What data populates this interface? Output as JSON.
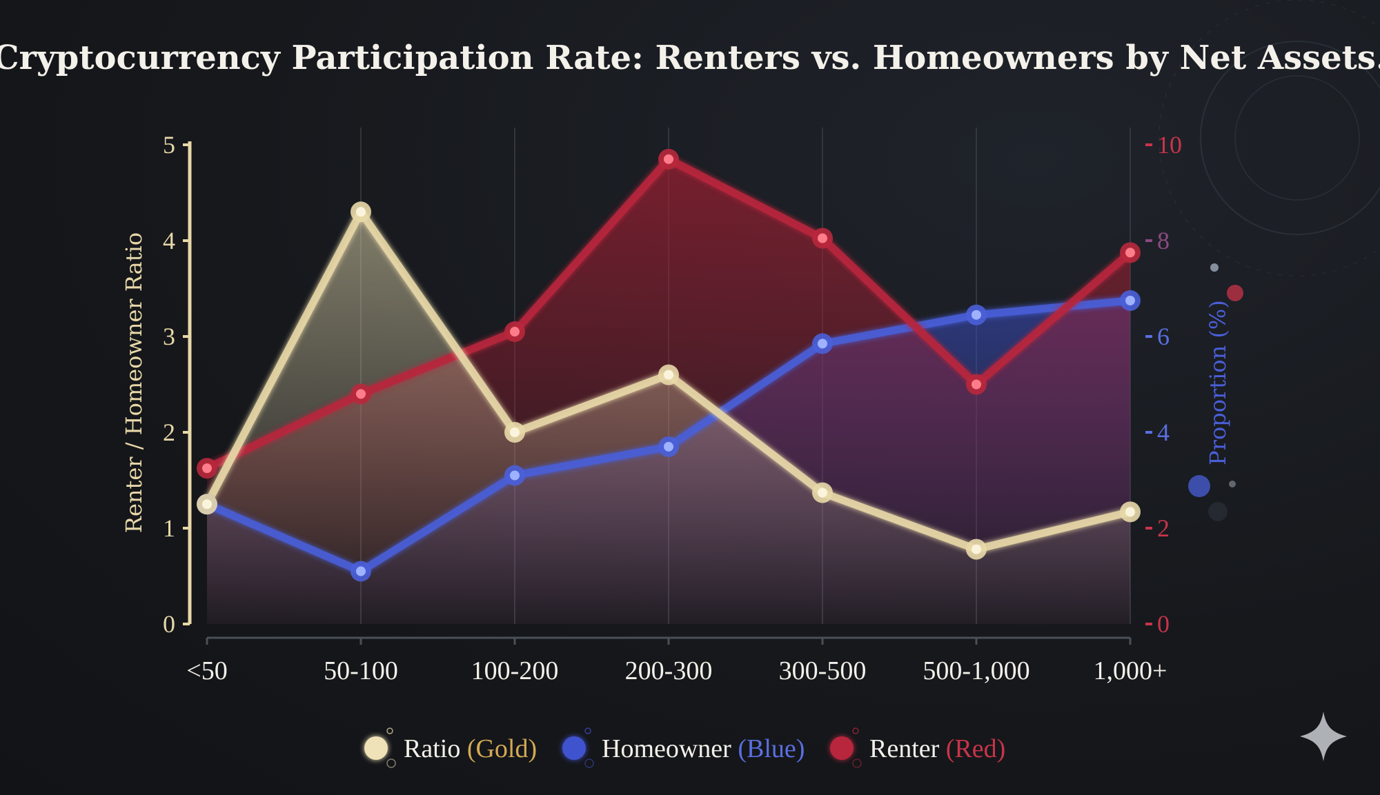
{
  "chart_data": {
    "type": "line",
    "title": "Cryptocurrency Participation Rate: Renters vs. Homeowners by Net Assets.",
    "categories": [
      "<50",
      "50-100",
      "100-200",
      "200-300",
      "300-500",
      "500-1,000",
      "1,000+"
    ],
    "left_axis": {
      "label": "Renter / Homeowner Ratio",
      "range": [
        0,
        5
      ],
      "ticks": [
        "0",
        "1",
        "2",
        "3",
        "4",
        "5"
      ]
    },
    "right_axis": {
      "label": "Proportion (%)",
      "range": [
        0,
        10
      ],
      "ticks": [
        "0",
        "2",
        "4",
        "6",
        "8",
        "10"
      ]
    },
    "series": [
      {
        "key": "ratio",
        "name": "Ratio",
        "axis": "left",
        "color": "#e8d8a8",
        "values": [
          1.25,
          4.3,
          2.0,
          2.6,
          1.37,
          0.78,
          1.17
        ]
      },
      {
        "key": "homeowner",
        "name": "Homeowner",
        "axis": "right",
        "color": "#4a5fd8",
        "values": [
          2.5,
          1.1,
          3.1,
          3.7,
          5.85,
          6.45,
          6.75
        ]
      },
      {
        "key": "renter",
        "name": "Renter",
        "axis": "right",
        "color": "#b8283c",
        "values": [
          3.25,
          4.8,
          6.1,
          9.7,
          8.05,
          5.0,
          7.75
        ]
      }
    ],
    "legend": {
      "placement": "bottom-center",
      "items": [
        {
          "series": "ratio",
          "name": "Ratio",
          "tag": "(Gold)",
          "tag_color": "#d4aa55"
        },
        {
          "series": "homeowner",
          "name": "Homeowner",
          "tag": "(Blue)",
          "tag_color": "#5a6fe0"
        },
        {
          "series": "renter",
          "name": "Renter",
          "tag": "(Red)",
          "tag_color": "#c8344a"
        }
      ]
    },
    "grid": "vertical"
  },
  "colors": {
    "left_axis": "#e8d8a8",
    "right_axis_bottom": "#c8344a",
    "right_axis_top": "#c8344a",
    "right_label": "#4a5fd8",
    "text": "#f4f1ea"
  },
  "icons": [
    "sparkle-icon"
  ]
}
